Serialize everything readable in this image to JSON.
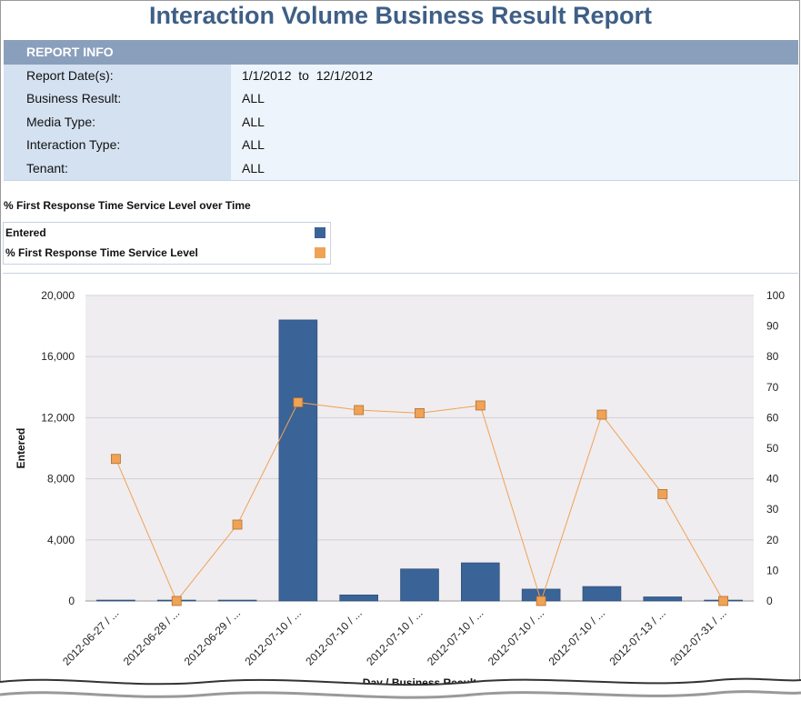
{
  "report": {
    "title": "Interaction Volume Business Result Report",
    "info_header": "REPORT INFO",
    "rows": [
      {
        "label": "Report Date(s):",
        "value": "1/1/2012  to  12/1/2012"
      },
      {
        "label": "Business Result:",
        "value": "ALL"
      },
      {
        "label": "Media Type:",
        "value": "ALL"
      },
      {
        "label": "Interaction Type:",
        "value": "ALL"
      },
      {
        "label": "Tenant:",
        "value": "ALL"
      }
    ]
  },
  "colors": {
    "bar": "#3a6397",
    "line": "#f0a255",
    "header": "#8a9fbc"
  },
  "chart_data": {
    "type": "bar",
    "title": "% First Response Time Service Level over Time",
    "xlabel": "Day / Business Result",
    "ylabel": "Entered",
    "ylabel_right": "",
    "categories": [
      "2012-06-27 / ...",
      "2012-06-28 / ...",
      "2012-06-29 / ...",
      "2012-07-10 / ...",
      "2012-07-10 / ...",
      "2012-07-10 / ...",
      "2012-07-10 / ...",
      "2012-07-10 / ...",
      "2012-07-10 / ...",
      "2012-07-13 / ...",
      "2012-07-31 / ..."
    ],
    "ylim": [
      0,
      20000
    ],
    "yticks": [
      "0",
      "4,000",
      "8,000",
      "12,000",
      "16,000",
      "20,000"
    ],
    "ylim_right": [
      0,
      100
    ],
    "yticks_right": [
      "0",
      "10",
      "20",
      "30",
      "40",
      "50",
      "60",
      "70",
      "80",
      "90",
      "100"
    ],
    "grid": true,
    "legend": "top-left",
    "series": [
      {
        "name": "Entered",
        "type": "bar",
        "axis": "left",
        "values": [
          60,
          20,
          10,
          18400,
          400,
          2100,
          2500,
          780,
          950,
          270,
          20
        ]
      },
      {
        "name": "% First Response Time Service Level",
        "type": "line",
        "axis": "right",
        "values": [
          46.5,
          0,
          25,
          65,
          62.5,
          61.5,
          64,
          0,
          61,
          35,
          0
        ]
      }
    ]
  }
}
